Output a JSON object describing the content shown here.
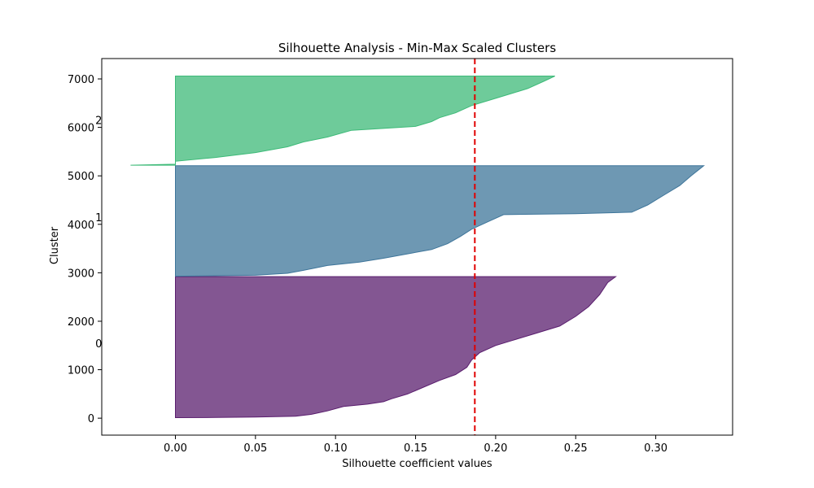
{
  "chart_data": {
    "type": "area",
    "title": "Silhouette Analysis - Min-Max Scaled Clusters",
    "xlabel": "Silhouette coefficient values",
    "ylabel": "Cluster",
    "xlim": [
      -0.046,
      0.348
    ],
    "ylim": [
      -350,
      7420
    ],
    "x_ticks": [
      0.0,
      0.05,
      0.1,
      0.15,
      0.2,
      0.25,
      0.3
    ],
    "x_tick_labels": [
      "0.00",
      "0.05",
      "0.10",
      "0.15",
      "0.20",
      "0.25",
      "0.30"
    ],
    "y_ticks": [
      0,
      1000,
      2000,
      3000,
      4000,
      5000,
      6000,
      7000
    ],
    "y_tick_labels": [
      "0",
      "1000",
      "2000",
      "3000",
      "4000",
      "5000",
      "6000",
      "7000"
    ],
    "grid": false,
    "average_silhouette": 0.187,
    "average_line_color": "#e00000",
    "clusters": [
      {
        "label": "0",
        "label_y": 1550,
        "color": "#5a1d6e",
        "y_start": 10,
        "y_end": 2920,
        "points": [
          [
            0.0,
            10
          ],
          [
            0.025,
            15
          ],
          [
            0.05,
            25
          ],
          [
            0.075,
            40
          ],
          [
            0.085,
            80
          ],
          [
            0.095,
            150
          ],
          [
            0.105,
            240
          ],
          [
            0.12,
            290
          ],
          [
            0.13,
            340
          ],
          [
            0.135,
            400
          ],
          [
            0.145,
            500
          ],
          [
            0.155,
            640
          ],
          [
            0.165,
            780
          ],
          [
            0.175,
            900
          ],
          [
            0.182,
            1050
          ],
          [
            0.185,
            1200
          ],
          [
            0.19,
            1350
          ],
          [
            0.2,
            1500
          ],
          [
            0.21,
            1600
          ],
          [
            0.225,
            1750
          ],
          [
            0.24,
            1900
          ],
          [
            0.25,
            2100
          ],
          [
            0.258,
            2300
          ],
          [
            0.265,
            2550
          ],
          [
            0.27,
            2800
          ],
          [
            0.275,
            2920
          ]
        ]
      },
      {
        "label": "1",
        "label_y": 4150,
        "color": "#3e759a",
        "y_start": 2930,
        "y_end": 5210,
        "points": [
          [
            0.0,
            2930
          ],
          [
            0.05,
            2950
          ],
          [
            0.07,
            2990
          ],
          [
            0.08,
            3050
          ],
          [
            0.095,
            3150
          ],
          [
            0.115,
            3220
          ],
          [
            0.13,
            3300
          ],
          [
            0.145,
            3390
          ],
          [
            0.16,
            3480
          ],
          [
            0.17,
            3600
          ],
          [
            0.178,
            3750
          ],
          [
            0.185,
            3900
          ],
          [
            0.195,
            4050
          ],
          [
            0.205,
            4200
          ],
          [
            0.25,
            4220
          ],
          [
            0.285,
            4250
          ],
          [
            0.295,
            4400
          ],
          [
            0.305,
            4600
          ],
          [
            0.315,
            4800
          ],
          [
            0.322,
            5000
          ],
          [
            0.33,
            5210
          ]
        ]
      },
      {
        "label": "2",
        "label_y": 6150,
        "color": "#3dba78",
        "y_start": 5220,
        "y_end": 7060,
        "points": [
          [
            -0.028,
            5220
          ],
          [
            0.0,
            5240
          ],
          [
            0.0,
            5300
          ],
          [
            0.025,
            5380
          ],
          [
            0.05,
            5480
          ],
          [
            0.07,
            5600
          ],
          [
            0.08,
            5700
          ],
          [
            0.095,
            5800
          ],
          [
            0.11,
            5940
          ],
          [
            0.15,
            6020
          ],
          [
            0.16,
            6120
          ],
          [
            0.165,
            6200
          ],
          [
            0.175,
            6300
          ],
          [
            0.185,
            6450
          ],
          [
            0.2,
            6600
          ],
          [
            0.21,
            6700
          ],
          [
            0.22,
            6800
          ],
          [
            0.23,
            6950
          ],
          [
            0.237,
            7060
          ]
        ]
      }
    ]
  }
}
